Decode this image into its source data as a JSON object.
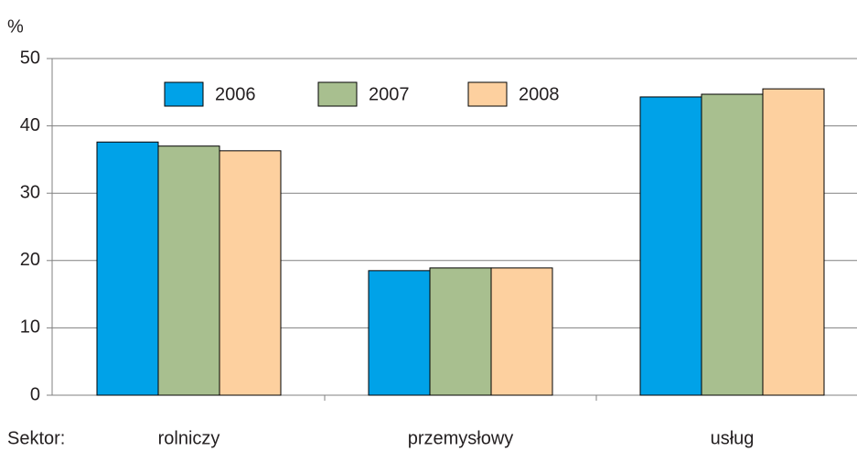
{
  "chart_data": {
    "type": "bar",
    "y_label": "%",
    "x_label": "Sektor:",
    "categories": [
      "rolniczy",
      "przemysłowy",
      "usług"
    ],
    "series": [
      {
        "name": "2006",
        "color": "#00a2e8",
        "values": [
          37.6,
          18.5,
          44.3
        ]
      },
      {
        "name": "2007",
        "color": "#a8bf8f",
        "values": [
          37.0,
          18.9,
          44.7
        ]
      },
      {
        "name": "2008",
        "color": "#fdd09f",
        "values": [
          36.3,
          18.9,
          45.5
        ]
      }
    ],
    "ylim": [
      0,
      50
    ],
    "yticks": [
      0,
      10,
      20,
      30,
      40,
      50
    ],
    "grid": true,
    "legend": "top"
  }
}
